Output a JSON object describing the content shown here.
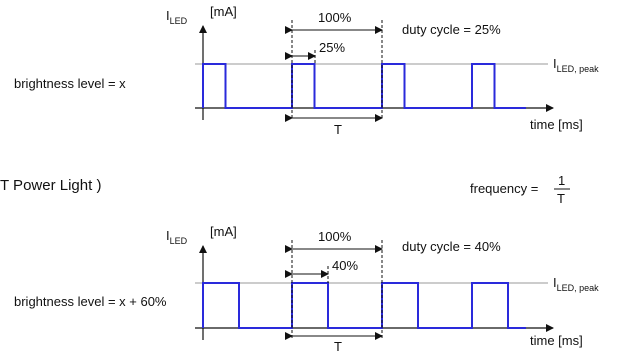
{
  "diagram1": {
    "axis_label_main": "I",
    "axis_label_sub": "LED",
    "axis_unit": "[mA]",
    "period_percent": "100%",
    "pulse_percent": "25%",
    "duty_cycle": "duty cycle = 25%",
    "peak_label_main": "I",
    "peak_label_sub": "LED, peak",
    "brightness": "brightness level = x",
    "time_label": "time [ms]",
    "period_symbol": "T",
    "duty_value": 0.25
  },
  "middle": {
    "cut_title": "T Power Light )",
    "frequency_label": "frequency =",
    "frequency_numerator": "1",
    "frequency_denominator": "T"
  },
  "diagram2": {
    "axis_label_main": "I",
    "axis_label_sub": "LED",
    "axis_unit": "[mA]",
    "period_percent": "100%",
    "pulse_percent": "40%",
    "duty_cycle": "duty cycle = 40%",
    "peak_label_main": "I",
    "peak_label_sub": "LED, peak",
    "brightness": "brightness level = x + 60%",
    "time_label": "time [ms]",
    "period_symbol": "T",
    "duty_value": 0.4
  },
  "colors": {
    "signal": "#2a2adb",
    "axis": "#111111",
    "guide": "#9a9a9a"
  }
}
